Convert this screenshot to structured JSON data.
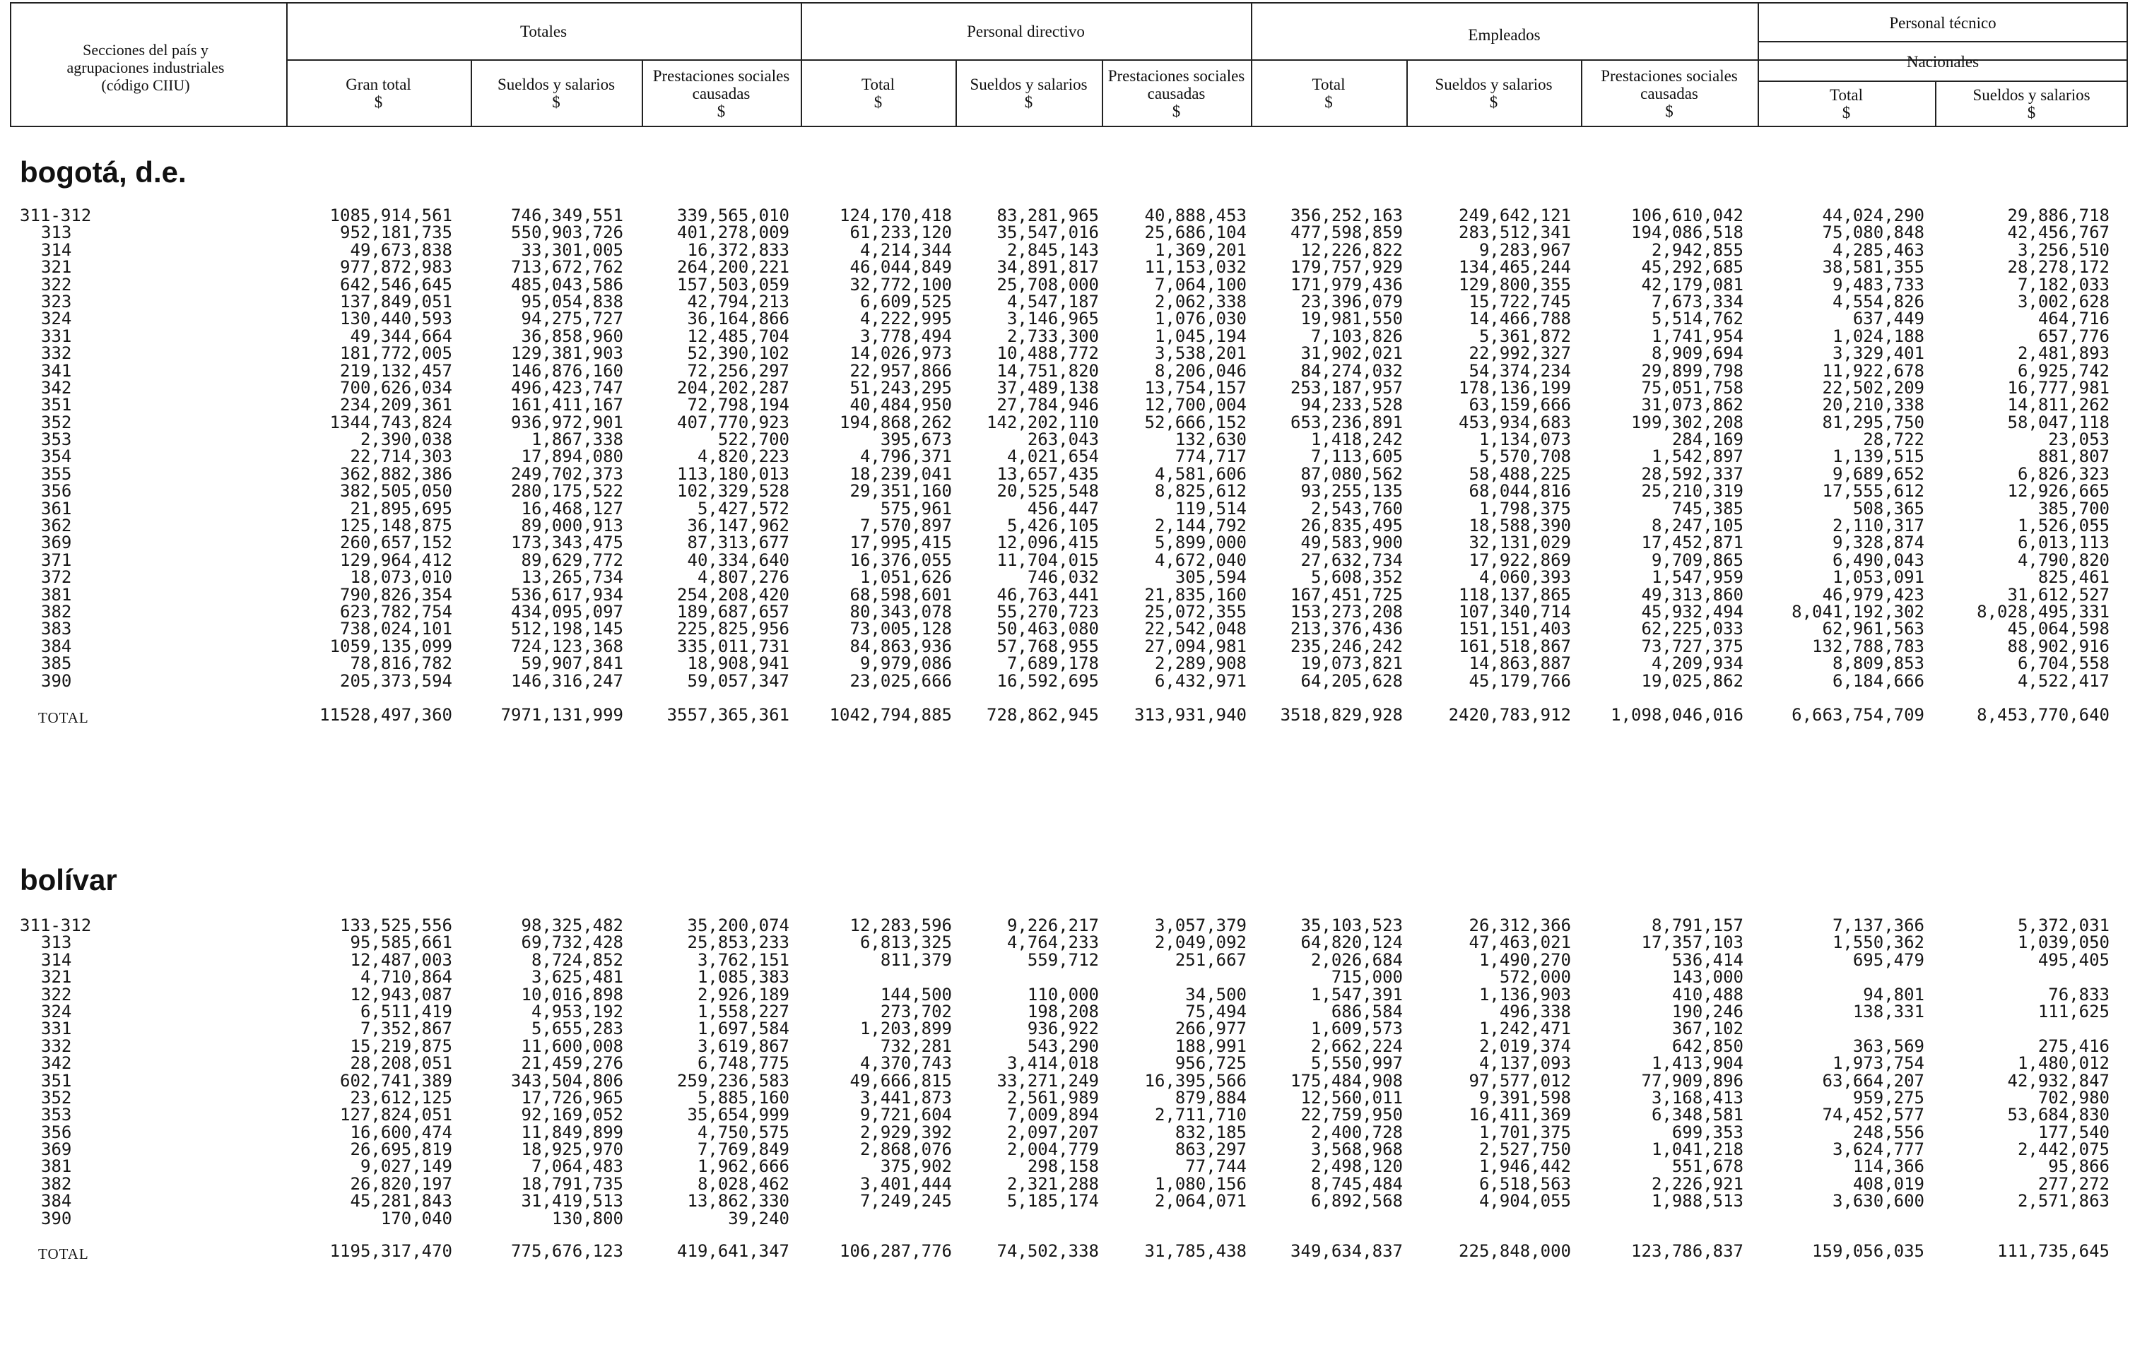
{
  "header": {
    "sector_label": "Secciones del país y agrupaciones industriales (código CIIU)",
    "groups": [
      {
        "label": "Totales"
      },
      {
        "label": "Personal directivo"
      },
      {
        "label": "Empleados"
      },
      {
        "label": "Personal técnico"
      }
    ],
    "subgroup_nacionales": "Nacionales",
    "columns": [
      {
        "label": "Gran total",
        "unit": "$"
      },
      {
        "label": "Sueldos y salarios",
        "unit": "$"
      },
      {
        "label": "Prestaciones sociales causadas",
        "unit": "$"
      },
      {
        "label": "Total",
        "unit": "$"
      },
      {
        "label": "Sueldos y salarios",
        "unit": "$"
      },
      {
        "label": "Prestaciones sociales causadas",
        "unit": "$"
      },
      {
        "label": "Total",
        "unit": "$"
      },
      {
        "label": "Sueldos y salarios",
        "unit": "$"
      },
      {
        "label": "Prestaciones sociales causadas",
        "unit": "$"
      },
      {
        "label": "Total",
        "unit": "$"
      },
      {
        "label": "Sueldos y salarios",
        "unit": "$"
      }
    ]
  },
  "sections": [
    {
      "title": "bogotá, d.e.",
      "rows": [
        [
          "311-312",
          "1085,914,561",
          "746,349,551",
          "339,565,010",
          "124,170,418",
          "83,281,965",
          "40,888,453",
          "356,252,163",
          "249,642,121",
          "106,610,042",
          "44,024,290",
          "29,886,718"
        ],
        [
          "313",
          "952,181,735",
          "550,903,726",
          "401,278,009",
          "61,233,120",
          "35,547,016",
          "25,686,104",
          "477,598,859",
          "283,512,341",
          "194,086,518",
          "75,080,848",
          "42,456,767"
        ],
        [
          "314",
          "49,673,838",
          "33,301,005",
          "16,372,833",
          "4,214,344",
          "2,845,143",
          "1,369,201",
          "12,226,822",
          "9,283,967",
          "2,942,855",
          "4,285,463",
          "3,256,510"
        ],
        [
          "321",
          "977,872,983",
          "713,672,762",
          "264,200,221",
          "46,044,849",
          "34,891,817",
          "11,153,032",
          "179,757,929",
          "134,465,244",
          "45,292,685",
          "38,581,355",
          "28,278,172"
        ],
        [
          "322",
          "642,546,645",
          "485,043,586",
          "157,503,059",
          "32,772,100",
          "25,708,000",
          "7,064,100",
          "171,979,436",
          "129,800,355",
          "42,179,081",
          "9,483,733",
          "7,182,033"
        ],
        [
          "323",
          "137,849,051",
          "95,054,838",
          "42,794,213",
          "6,609,525",
          "4,547,187",
          "2,062,338",
          "23,396,079",
          "15,722,745",
          "7,673,334",
          "4,554,826",
          "3,002,628"
        ],
        [
          "324",
          "130,440,593",
          "94,275,727",
          "36,164,866",
          "4,222,995",
          "3,146,965",
          "1,076,030",
          "19,981,550",
          "14,466,788",
          "5,514,762",
          "637,449",
          "464,716"
        ],
        [
          "331",
          "49,344,664",
          "36,858,960",
          "12,485,704",
          "3,778,494",
          "2,733,300",
          "1,045,194",
          "7,103,826",
          "5,361,872",
          "1,741,954",
          "1,024,188",
          "657,776"
        ],
        [
          "332",
          "181,772,005",
          "129,381,903",
          "52,390,102",
          "14,026,973",
          "10,488,772",
          "3,538,201",
          "31,902,021",
          "22,992,327",
          "8,909,694",
          "3,329,401",
          "2,481,893"
        ],
        [
          "341",
          "219,132,457",
          "146,876,160",
          "72,256,297",
          "22,957,866",
          "14,751,820",
          "8,206,046",
          "84,274,032",
          "54,374,234",
          "29,899,798",
          "11,922,678",
          "6,925,742"
        ],
        [
          "342",
          "700,626,034",
          "496,423,747",
          "204,202,287",
          "51,243,295",
          "37,489,138",
          "13,754,157",
          "253,187,957",
          "178,136,199",
          "75,051,758",
          "22,502,209",
          "16,777,981"
        ],
        [
          "351",
          "234,209,361",
          "161,411,167",
          "72,798,194",
          "40,484,950",
          "27,784,946",
          "12,700,004",
          "94,233,528",
          "63,159,666",
          "31,073,862",
          "20,210,338",
          "14,811,262"
        ],
        [
          "352",
          "1344,743,824",
          "936,972,901",
          "407,770,923",
          "194,868,262",
          "142,202,110",
          "52,666,152",
          "653,236,891",
          "453,934,683",
          "199,302,208",
          "81,295,750",
          "58,047,118"
        ],
        [
          "353",
          "2,390,038",
          "1,867,338",
          "522,700",
          "395,673",
          "263,043",
          "132,630",
          "1,418,242",
          "1,134,073",
          "284,169",
          "28,722",
          "23,053"
        ],
        [
          "354",
          "22,714,303",
          "17,894,080",
          "4,820,223",
          "4,796,371",
          "4,021,654",
          "774,717",
          "7,113,605",
          "5,570,708",
          "1,542,897",
          "1,139,515",
          "881,807"
        ],
        [
          "355",
          "362,882,386",
          "249,702,373",
          "113,180,013",
          "18,239,041",
          "13,657,435",
          "4,581,606",
          "87,080,562",
          "58,488,225",
          "28,592,337",
          "9,689,652",
          "6,826,323"
        ],
        [
          "356",
          "382,505,050",
          "280,175,522",
          "102,329,528",
          "29,351,160",
          "20,525,548",
          "8,825,612",
          "93,255,135",
          "68,044,816",
          "25,210,319",
          "17,555,612",
          "12,926,665"
        ],
        [
          "361",
          "21,895,695",
          "16,468,127",
          "5,427,572",
          "575,961",
          "456,447",
          "119,514",
          "2,543,760",
          "1,798,375",
          "745,385",
          "508,365",
          "385,700"
        ],
        [
          "362",
          "125,148,875",
          "89,000,913",
          "36,147,962",
          "7,570,897",
          "5,426,105",
          "2,144,792",
          "26,835,495",
          "18,588,390",
          "8,247,105",
          "2,110,317",
          "1,526,055"
        ],
        [
          "369",
          "260,657,152",
          "173,343,475",
          "87,313,677",
          "17,995,415",
          "12,096,415",
          "5,899,000",
          "49,583,900",
          "32,131,029",
          "17,452,871",
          "9,328,874",
          "6,013,113"
        ],
        [
          "371",
          "129,964,412",
          "89,629,772",
          "40,334,640",
          "16,376,055",
          "11,704,015",
          "4,672,040",
          "27,632,734",
          "17,922,869",
          "9,709,865",
          "6,490,043",
          "4,790,820"
        ],
        [
          "372",
          "18,073,010",
          "13,265,734",
          "4,807,276",
          "1,051,626",
          "746,032",
          "305,594",
          "5,608,352",
          "4,060,393",
          "1,547,959",
          "1,053,091",
          "825,461"
        ],
        [
          "381",
          "790,826,354",
          "536,617,934",
          "254,208,420",
          "68,598,601",
          "46,763,441",
          "21,835,160",
          "167,451,725",
          "118,137,865",
          "49,313,860",
          "46,979,423",
          "31,612,527"
        ],
        [
          "382",
          "623,782,754",
          "434,095,097",
          "189,687,657",
          "80,343,078",
          "55,270,723",
          "25,072,355",
          "153,273,208",
          "107,340,714",
          "45,932,494",
          "8,041,192,302",
          "8,028,495,331"
        ],
        [
          "383",
          "738,024,101",
          "512,198,145",
          "225,825,956",
          "73,005,128",
          "50,463,080",
          "22,542,048",
          "213,376,436",
          "151,151,403",
          "62,225,033",
          "62,961,563",
          "45,064,598"
        ],
        [
          "384",
          "1059,135,099",
          "724,123,368",
          "335,011,731",
          "84,863,936",
          "57,768,955",
          "27,094,981",
          "235,246,242",
          "161,518,867",
          "73,727,375",
          "132,788,783",
          "88,902,916"
        ],
        [
          "385",
          "78,816,782",
          "59,907,841",
          "18,908,941",
          "9,979,086",
          "7,689,178",
          "2,289,908",
          "19,073,821",
          "14,863,887",
          "4,209,934",
          "8,809,853",
          "6,704,558"
        ],
        [
          "390",
          "205,373,594",
          "146,316,247",
          "59,057,347",
          "23,025,666",
          "16,592,695",
          "6,432,971",
          "64,205,628",
          "45,179,766",
          "19,025,862",
          "6,184,666",
          "4,522,417"
        ]
      ],
      "total": [
        "TOTAL",
        "11528,497,360",
        "7971,131,999",
        "3557,365,361",
        "1042,794,885",
        "728,862,945",
        "313,931,940",
        "3518,829,928",
        "2420,783,912",
        "1,098,046,016",
        "6,663,754,709",
        "8,453,770,640"
      ]
    },
    {
      "title": "bolívar",
      "rows": [
        [
          "311-312",
          "133,525,556",
          "98,325,482",
          "35,200,074",
          "12,283,596",
          "9,226,217",
          "3,057,379",
          "35,103,523",
          "26,312,366",
          "8,791,157",
          "7,137,366",
          "5,372,031"
        ],
        [
          "313",
          "95,585,661",
          "69,732,428",
          "25,853,233",
          "6,813,325",
          "4,764,233",
          "2,049,092",
          "64,820,124",
          "47,463,021",
          "17,357,103",
          "1,550,362",
          "1,039,050"
        ],
        [
          "314",
          "12,487,003",
          "8,724,852",
          "3,762,151",
          "811,379",
          "559,712",
          "251,667",
          "2,026,684",
          "1,490,270",
          "536,414",
          "695,479",
          "495,405"
        ],
        [
          "321",
          "4,710,864",
          "3,625,481",
          "1,085,383",
          "",
          "",
          "",
          "715,000",
          "572,000",
          "143,000",
          "",
          ""
        ],
        [
          "322",
          "12,943,087",
          "10,016,898",
          "2,926,189",
          "144,500",
          "110,000",
          "34,500",
          "1,547,391",
          "1,136,903",
          "410,488",
          "94,801",
          "76,833"
        ],
        [
          "324",
          "6,511,419",
          "4,953,192",
          "1,558,227",
          "273,702",
          "198,208",
          "75,494",
          "686,584",
          "496,338",
          "190,246",
          "138,331",
          "111,625"
        ],
        [
          "331",
          "7,352,867",
          "5,655,283",
          "1,697,584",
          "1,203,899",
          "936,922",
          "266,977",
          "1,609,573",
          "1,242,471",
          "367,102",
          "",
          ""
        ],
        [
          "332",
          "15,219,875",
          "11,600,008",
          "3,619,867",
          "732,281",
          "543,290",
          "188,991",
          "2,662,224",
          "2,019,374",
          "642,850",
          "363,569",
          "275,416"
        ],
        [
          "342",
          "28,208,051",
          "21,459,276",
          "6,748,775",
          "4,370,743",
          "3,414,018",
          "956,725",
          "5,550,997",
          "4,137,093",
          "1,413,904",
          "1,973,754",
          "1,480,012"
        ],
        [
          "351",
          "602,741,389",
          "343,504,806",
          "259,236,583",
          "49,666,815",
          "33,271,249",
          "16,395,566",
          "175,484,908",
          "97,577,012",
          "77,909,896",
          "63,664,207",
          "42,932,847"
        ],
        [
          "352",
          "23,612,125",
          "17,726,965",
          "5,885,160",
          "3,441,873",
          "2,561,989",
          "879,884",
          "12,560,011",
          "9,391,598",
          "3,168,413",
          "959,275",
          "702,980"
        ],
        [
          "353",
          "127,824,051",
          "92,169,052",
          "35,654,999",
          "9,721,604",
          "7,009,894",
          "2,711,710",
          "22,759,950",
          "16,411,369",
          "6,348,581",
          "74,452,577",
          "53,684,830"
        ],
        [
          "356",
          "16,600,474",
          "11,849,899",
          "4,750,575",
          "2,929,392",
          "2,097,207",
          "832,185",
          "2,400,728",
          "1,701,375",
          "699,353",
          "248,556",
          "177,540"
        ],
        [
          "369",
          "26,695,819",
          "18,925,970",
          "7,769,849",
          "2,868,076",
          "2,004,779",
          "863,297",
          "3,568,968",
          "2,527,750",
          "1,041,218",
          "3,624,777",
          "2,442,075"
        ],
        [
          "381",
          "9,027,149",
          "7,064,483",
          "1,962,666",
          "375,902",
          "298,158",
          "77,744",
          "2,498,120",
          "1,946,442",
          "551,678",
          "114,366",
          "95,866"
        ],
        [
          "382",
          "26,820,197",
          "18,791,735",
          "8,028,462",
          "3,401,444",
          "2,321,288",
          "1,080,156",
          "8,745,484",
          "6,518,563",
          "2,226,921",
          "408,019",
          "277,272"
        ],
        [
          "384",
          "45,281,843",
          "31,419,513",
          "13,862,330",
          "7,249,245",
          "5,185,174",
          "2,064,071",
          "6,892,568",
          "4,904,055",
          "1,988,513",
          "3,630,600",
          "2,571,863"
        ],
        [
          "390",
          "170,040",
          "130,800",
          "39,240",
          "",
          "",
          "",
          "",
          "",
          "",
          "",
          ""
        ]
      ],
      "total": [
        "TOTAL",
        "1195,317,470",
        "775,676,123",
        "419,641,347",
        "106,287,776",
        "74,502,338",
        "31,785,438",
        "349,634,837",
        "225,848,000",
        "123,786,837",
        "159,056,035",
        "111,735,645"
      ]
    }
  ]
}
